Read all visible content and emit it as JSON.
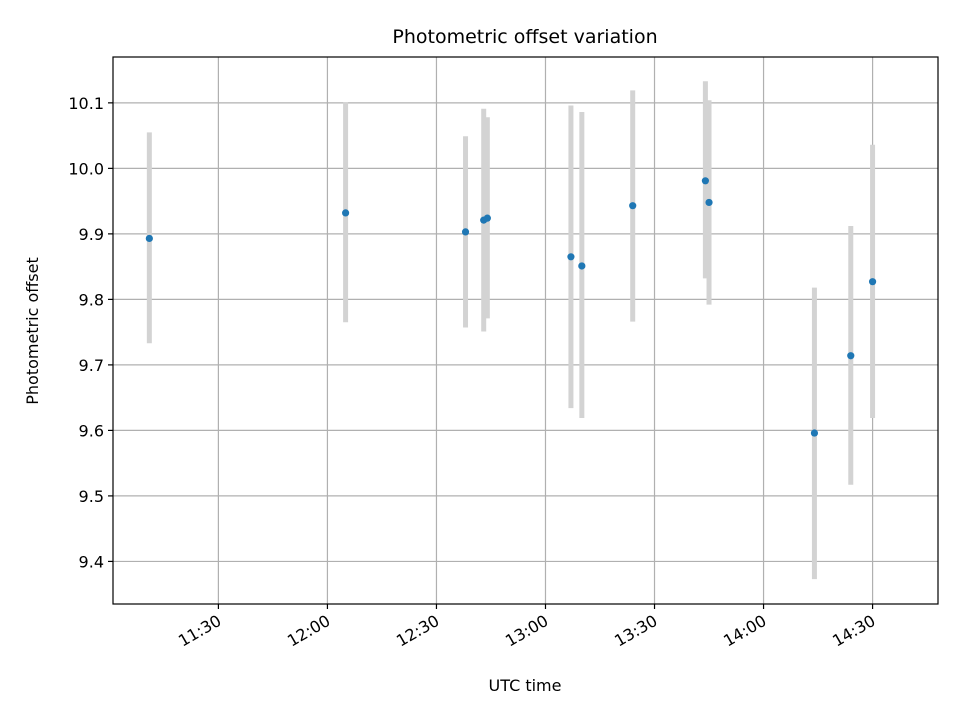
{
  "chart_data": {
    "type": "scatter",
    "title": "Photometric offset variation",
    "xlabel": "UTC time",
    "ylabel": "Photometric offset",
    "x_axis_type": "time",
    "xlim": [
      "11:01",
      "14:48"
    ],
    "ylim": [
      9.335,
      10.17
    ],
    "grid": true,
    "x_ticks": [
      "11:30",
      "12:00",
      "12:30",
      "13:00",
      "13:30",
      "14:00",
      "14:30"
    ],
    "y_ticks": [
      "9.4",
      "9.5",
      "9.6",
      "9.7",
      "9.8",
      "9.9",
      "10.0",
      "10.1"
    ],
    "point_color": "#1f77b4",
    "errorbar_color": "#d3d3d3",
    "points": [
      {
        "x": "11:11",
        "y": 9.893,
        "yerr_low": 9.733,
        "yerr_high": 10.055
      },
      {
        "x": "12:05",
        "y": 9.932,
        "yerr_low": 9.765,
        "yerr_high": 10.101
      },
      {
        "x": "12:38",
        "y": 9.903,
        "yerr_low": 9.757,
        "yerr_high": 10.049
      },
      {
        "x": "12:43",
        "y": 9.921,
        "yerr_low": 9.751,
        "yerr_high": 10.091
      },
      {
        "x": "12:44",
        "y": 9.924,
        "yerr_low": 9.771,
        "yerr_high": 10.078
      },
      {
        "x": "13:07",
        "y": 9.865,
        "yerr_low": 9.634,
        "yerr_high": 10.096
      },
      {
        "x": "13:10",
        "y": 9.851,
        "yerr_low": 9.619,
        "yerr_high": 10.086
      },
      {
        "x": "13:24",
        "y": 9.943,
        "yerr_low": 9.766,
        "yerr_high": 10.119
      },
      {
        "x": "13:44",
        "y": 9.981,
        "yerr_low": 9.832,
        "yerr_high": 10.133
      },
      {
        "x": "13:45",
        "y": 9.948,
        "yerr_low": 9.792,
        "yerr_high": 10.104
      },
      {
        "x": "14:14",
        "y": 9.596,
        "yerr_low": 9.373,
        "yerr_high": 9.818
      },
      {
        "x": "14:24",
        "y": 9.714,
        "yerr_low": 9.517,
        "yerr_high": 9.912
      },
      {
        "x": "14:30",
        "y": 9.827,
        "yerr_low": 9.619,
        "yerr_high": 10.036
      }
    ]
  }
}
